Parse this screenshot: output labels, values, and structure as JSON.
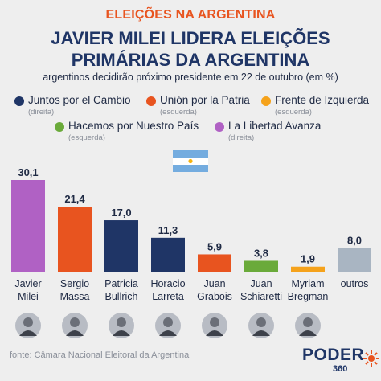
{
  "header": {
    "kicker": "ELEIÇÕES NA ARGENTINA",
    "title_line1": "JAVIER MILEI LIDERA ELEIÇÕES",
    "title_line2": "PRIMÁRIAS DA ARGENTINA",
    "subtitle": "argentinos decidirão próximo presidente em 22 de outubro (em %)"
  },
  "legend": [
    {
      "label": "Juntos por el Cambio",
      "note": "(direita)",
      "color": "#1f3566"
    },
    {
      "label": "Unión por la Patria",
      "note": "(esquerda)",
      "color": "#e8541f"
    },
    {
      "label": "Frente de Izquierda",
      "note": "(esquerda)",
      "color": "#f5a21b"
    },
    {
      "label": "Hacemos por Nuestro País",
      "note": "(esquerda)",
      "color": "#6aaa3a"
    },
    {
      "label": "La Libertad Avanza",
      "note": "(direita)",
      "color": "#b061c4"
    }
  ],
  "chart_data": {
    "type": "bar",
    "title": "JAVIER MILEI LIDERA ELEIÇÕES PRIMÁRIAS DA ARGENTINA",
    "subtitle": "argentinos decidirão próximo presidente em 22 de outubro (em %)",
    "categories": [
      "Javier Milei",
      "Sergio Massa",
      "Patricia Bullrich",
      "Horacio Larreta",
      "Juan Grabois",
      "Juan Schiaretti",
      "Myriam Bregman",
      "outros"
    ],
    "category_lines": [
      [
        "Javier",
        "Milei"
      ],
      [
        "Sergio",
        "Massa"
      ],
      [
        "Patricia",
        "Bullrich"
      ],
      [
        "Horacio",
        "Larreta"
      ],
      [
        "Juan",
        "Grabois"
      ],
      [
        "Juan",
        "Schiaretti"
      ],
      [
        "Myriam",
        "Bregman"
      ],
      [
        "outros",
        ""
      ]
    ],
    "values": [
      30.1,
      21.4,
      17.0,
      11.3,
      5.9,
      3.8,
      1.9,
      8.0
    ],
    "value_labels": [
      "30,1",
      "21,4",
      "17,0",
      "11,3",
      "5,9",
      "3,8",
      "1,9",
      "8,0"
    ],
    "colors": [
      "#b061c4",
      "#e8541f",
      "#1f3566",
      "#1f3566",
      "#e8541f",
      "#6aaa3a",
      "#f5a21b",
      "#a9b5c2"
    ],
    "ylim": [
      0,
      30.1
    ],
    "grid": false,
    "legend_position": "top"
  },
  "footer": {
    "source": "fonte: Câmara Nacional Eleitoral da Argentina",
    "logo": "PODER",
    "logo_sub": "360"
  }
}
